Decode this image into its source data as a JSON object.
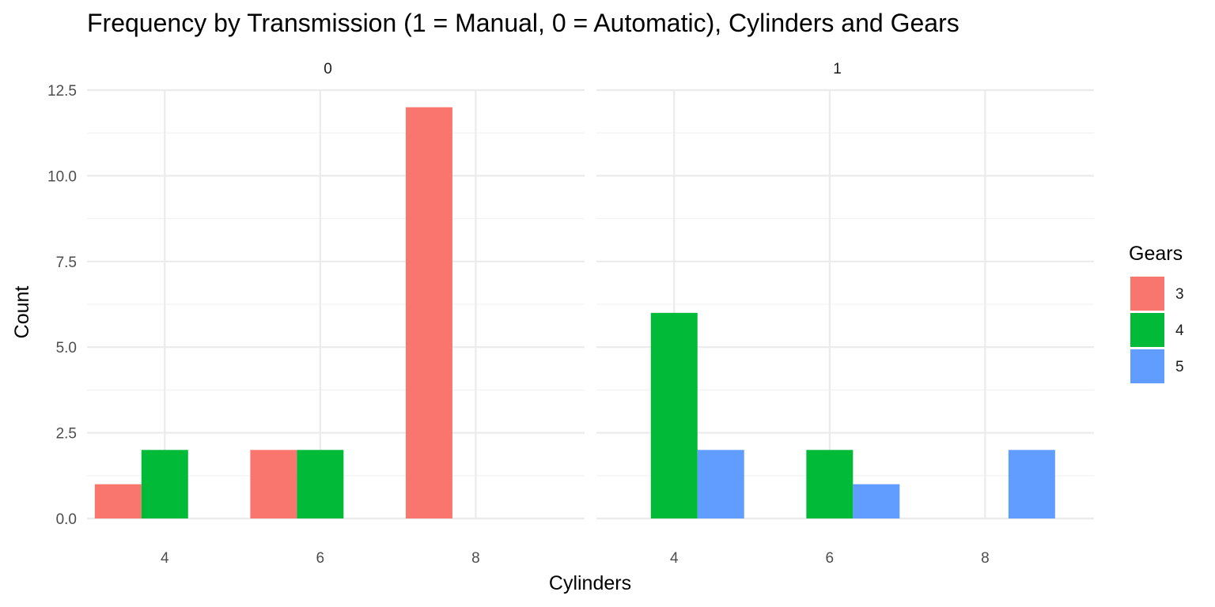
{
  "chart_data": {
    "type": "bar",
    "title": "Frequency by Transmission (1 = Manual, 0 = Automatic), Cylinders and Gears",
    "xlabel": "Cylinders",
    "ylabel": "Count",
    "ylim": [
      0,
      12.5
    ],
    "yticks": [
      "0.0",
      "2.5",
      "5.0",
      "7.5",
      "10.0",
      "12.5"
    ],
    "x_categories": [
      "4",
      "6",
      "8"
    ],
    "grid": true,
    "legend": {
      "title": "Gears",
      "placement": "right",
      "items": [
        {
          "label": "3",
          "color": "#F8766D"
        },
        {
          "label": "4",
          "color": "#00BA38"
        },
        {
          "label": "5",
          "color": "#619CFF"
        }
      ]
    },
    "panels": [
      {
        "label": "0",
        "bars": [
          {
            "cylinders": 4,
            "gear": "3",
            "count": 1
          },
          {
            "cylinders": 4,
            "gear": "4",
            "count": 2
          },
          {
            "cylinders": 6,
            "gear": "3",
            "count": 2
          },
          {
            "cylinders": 6,
            "gear": "4",
            "count": 2
          },
          {
            "cylinders": 8,
            "gear": "3",
            "count": 12
          }
        ]
      },
      {
        "label": "1",
        "bars": [
          {
            "cylinders": 4,
            "gear": "4",
            "count": 6
          },
          {
            "cylinders": 4,
            "gear": "5",
            "count": 2
          },
          {
            "cylinders": 6,
            "gear": "4",
            "count": 2
          },
          {
            "cylinders": 6,
            "gear": "5",
            "count": 1
          },
          {
            "cylinders": 8,
            "gear": "5",
            "count": 2
          }
        ]
      }
    ]
  }
}
